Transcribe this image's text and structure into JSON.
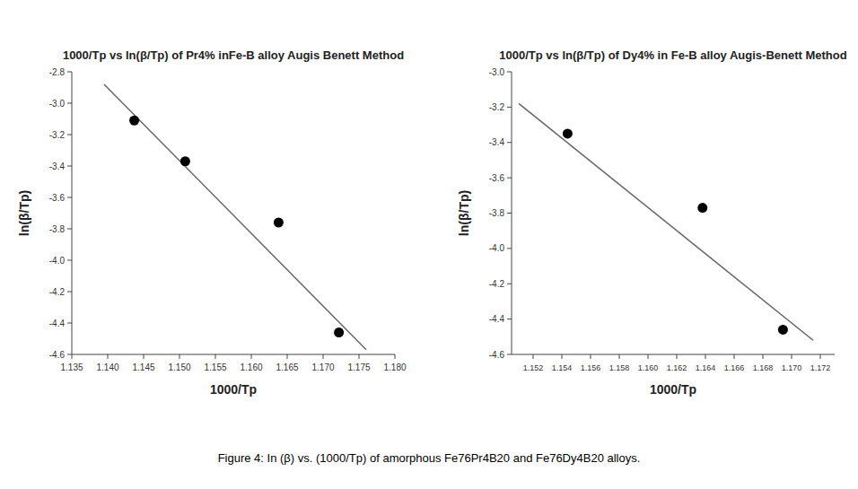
{
  "chart_data": [
    {
      "type": "scatter",
      "title": "1000/Tp  vs  ln(β/Tp) of Pr4% inFe-B alloy Augis Benett Method",
      "x_label": "1000/Tp",
      "y_label": "ln(β/Tp)",
      "series": [
        {
          "type": "line",
          "color": "#666666",
          "x": [
            1.1395,
            1.176
          ],
          "values": [
            -2.88,
            -4.57
          ]
        },
        {
          "type": "scatter",
          "color": "#000000",
          "x": [
            1.1437,
            1.1508,
            1.1638,
            1.1722
          ],
          "values": [
            -3.11,
            -3.37,
            -3.76,
            -4.46
          ]
        }
      ],
      "xlim": [
        1.135,
        1.18
      ],
      "ylim": [
        -4.6,
        -2.8
      ],
      "xticks": [
        1.135,
        {
          "value": 1.14,
          "label": "1.140"
        },
        1.145,
        {
          "value": 1.15,
          "label": "1.150"
        },
        1.155,
        {
          "value": 1.16,
          "label": "1.160"
        },
        1.165,
        {
          "value": 1.17,
          "label": "1.170"
        },
        1.175,
        {
          "value": 1.18,
          "label": "1.180"
        }
      ],
      "yticks": [
        -4.6,
        -4.4,
        -4.2,
        {
          "value": -4.0,
          "label": "-4.0"
        },
        -3.8,
        -3.6,
        -3.4,
        -3.2,
        {
          "value": -3.0,
          "label": "-3.0"
        },
        -2.8
      ]
    },
    {
      "type": "scatter",
      "title": "1000/Tp  vs  ln(β/Tp) of Dy4% in Fe-B alloy Augis-Benett Method",
      "x_label": "1000/Tp",
      "y_label": "ln(β/Tp)",
      "series": [
        {
          "type": "line",
          "color": "#666666",
          "x": [
            1.151,
            1.1715
          ],
          "values": [
            -3.18,
            -4.52
          ]
        },
        {
          "type": "scatter",
          "color": "#000000",
          "x": [
            1.1544,
            1.1638,
            1.1694
          ],
          "values": [
            -3.35,
            -3.77,
            -4.46
          ]
        }
      ],
      "xlim": [
        1.1505,
        1.173
      ],
      "ylim": [
        -4.6,
        -3.0
      ],
      "xticks": [
        1.152,
        1.154,
        1.156,
        1.158,
        {
          "value": 1.16,
          "label": "1.160"
        },
        1.162,
        1.164,
        1.166,
        1.168,
        {
          "value": 1.17,
          "label": "1.170"
        },
        1.172
      ],
      "yticks": [
        -4.6,
        -4.4,
        -4.2,
        {
          "value": -4.0,
          "label": "-4.0"
        },
        -3.8,
        -3.6,
        -3.4,
        -3.2,
        {
          "value": -3.0,
          "label": "-3.0"
        }
      ]
    }
  ],
  "caption": "Figure 4: In (β) vs. (1000/Tp) of amorphous Fe76Pr4B20 and Fe76Dy4B20 alloys."
}
